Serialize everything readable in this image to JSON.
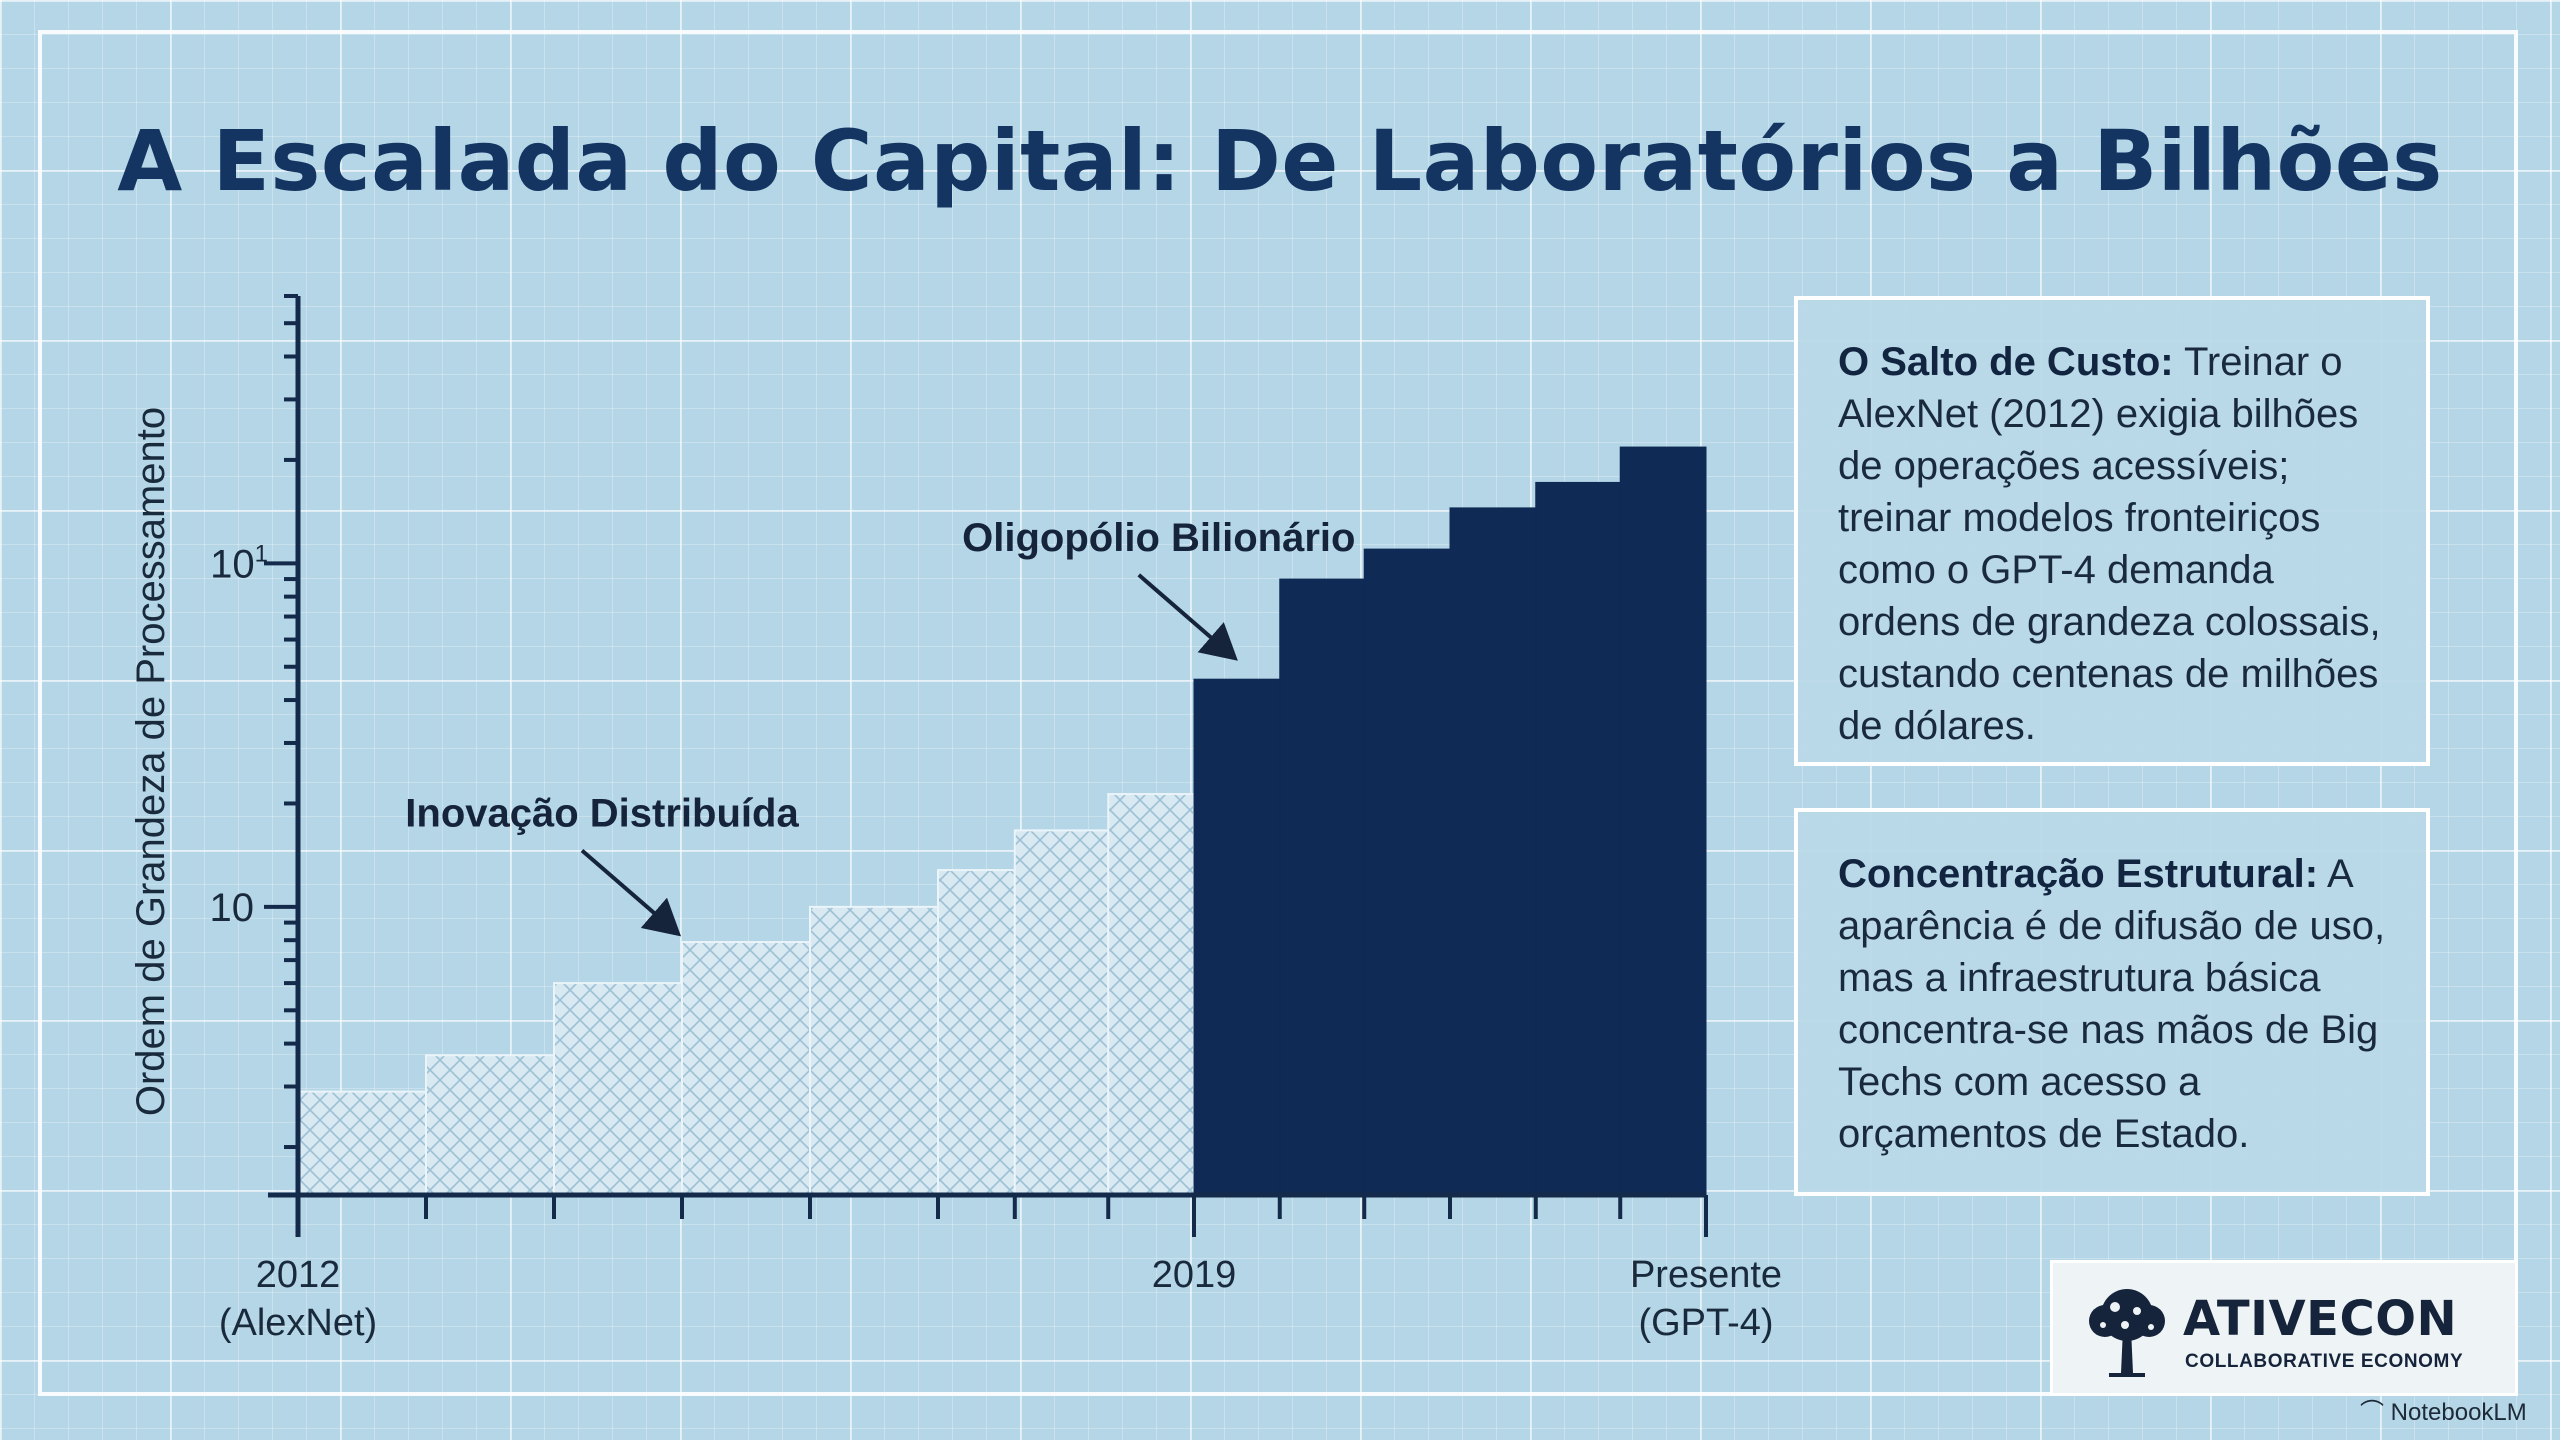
{
  "title": "A Escalada do Capital: De Laboratórios a Bilhões",
  "chart_data": {
    "type": "bar",
    "ylabel": "Ordem de Grandeza de Processamento",
    "xlabel": "",
    "x_tick_labels": [
      {
        "x": 2012,
        "line1": "2012",
        "line2": "(AlexNet)"
      },
      {
        "x": 2019,
        "line1": "2019",
        "line2": ""
      },
      {
        "x": 2023,
        "line1": "Presente",
        "line2": "(GPT-4)"
      }
    ],
    "y_scale": "log",
    "y_ticks": [
      {
        "value": 10,
        "label": "10",
        "sup": ""
      },
      {
        "value": 100,
        "label": "10",
        "sup": "1"
      }
    ],
    "ylim": [
      1.45,
      600
    ],
    "xlim": [
      2012,
      2023
    ],
    "grid": true,
    "series": [
      {
        "name": "",
        "style": "hatched-light",
        "bars": [
          {
            "x0": 2012.0,
            "x1": 2013.0,
            "value": 2.9
          },
          {
            "x0": 2013.0,
            "x1": 2014.0,
            "value": 3.7
          },
          {
            "x0": 2014.0,
            "x1": 2015.0,
            "value": 6.0
          },
          {
            "x0": 2015.0,
            "x1": 2016.0,
            "value": 7.9
          },
          {
            "x0": 2016.0,
            "x1": 2017.0,
            "value": 10.0
          },
          {
            "x0": 2017.0,
            "x1": 2017.6,
            "value": 12.8
          },
          {
            "x0": 2017.6,
            "x1": 2018.33,
            "value": 16.7
          },
          {
            "x0": 2018.33,
            "x1": 2019.0,
            "value": 21.3
          }
        ]
      },
      {
        "name": "",
        "style": "solid-dark",
        "bars": [
          {
            "x0": 2019.0,
            "x1": 2019.67,
            "value": 46
          },
          {
            "x0": 2019.67,
            "x1": 2020.33,
            "value": 90
          },
          {
            "x0": 2020.33,
            "x1": 2021.0,
            "value": 110
          },
          {
            "x0": 2021.0,
            "x1": 2021.67,
            "value": 145
          },
          {
            "x0": 2021.67,
            "x1": 2022.33,
            "value": 172
          },
          {
            "x0": 2022.33,
            "x1": 2023.0,
            "value": 218
          }
        ]
      }
    ],
    "annotations": [
      {
        "text": "Inovação Distribuída",
        "target_x": 2015.0,
        "target_y": 8.2
      },
      {
        "text": "Oligopólio Bilionário",
        "target_x": 2019.35,
        "target_y": 52
      }
    ]
  },
  "panels": [
    {
      "heading": "O Salto de Custo:",
      "body": " Treinar o AlexNet (2012) exigia bilhões de operações acessíveis; treinar modelos fronteiriços como o GPT-4 demanda ordens de grandeza colossais, custando centenas de milhões de dólares."
    },
    {
      "heading": "Concentração Estrutural:",
      "body": " A aparência é de difusão de uso, mas a infraestrutura básica concentra-se nas mãos de Big Techs com acesso a orçamentos de Estado."
    }
  ],
  "logo": {
    "name": "ATIVECON",
    "subtitle": "COLLABORATIVE ECONOMY",
    "icon": "tree-icon"
  },
  "watermark": {
    "text": "NotebookLM",
    "icon": "notebooklm-icon"
  },
  "colors": {
    "dark_bar": "#0f2a55",
    "light_bar": "#d5e7f0",
    "axis": "#142a4a",
    "text": "#1a2a3d"
  }
}
